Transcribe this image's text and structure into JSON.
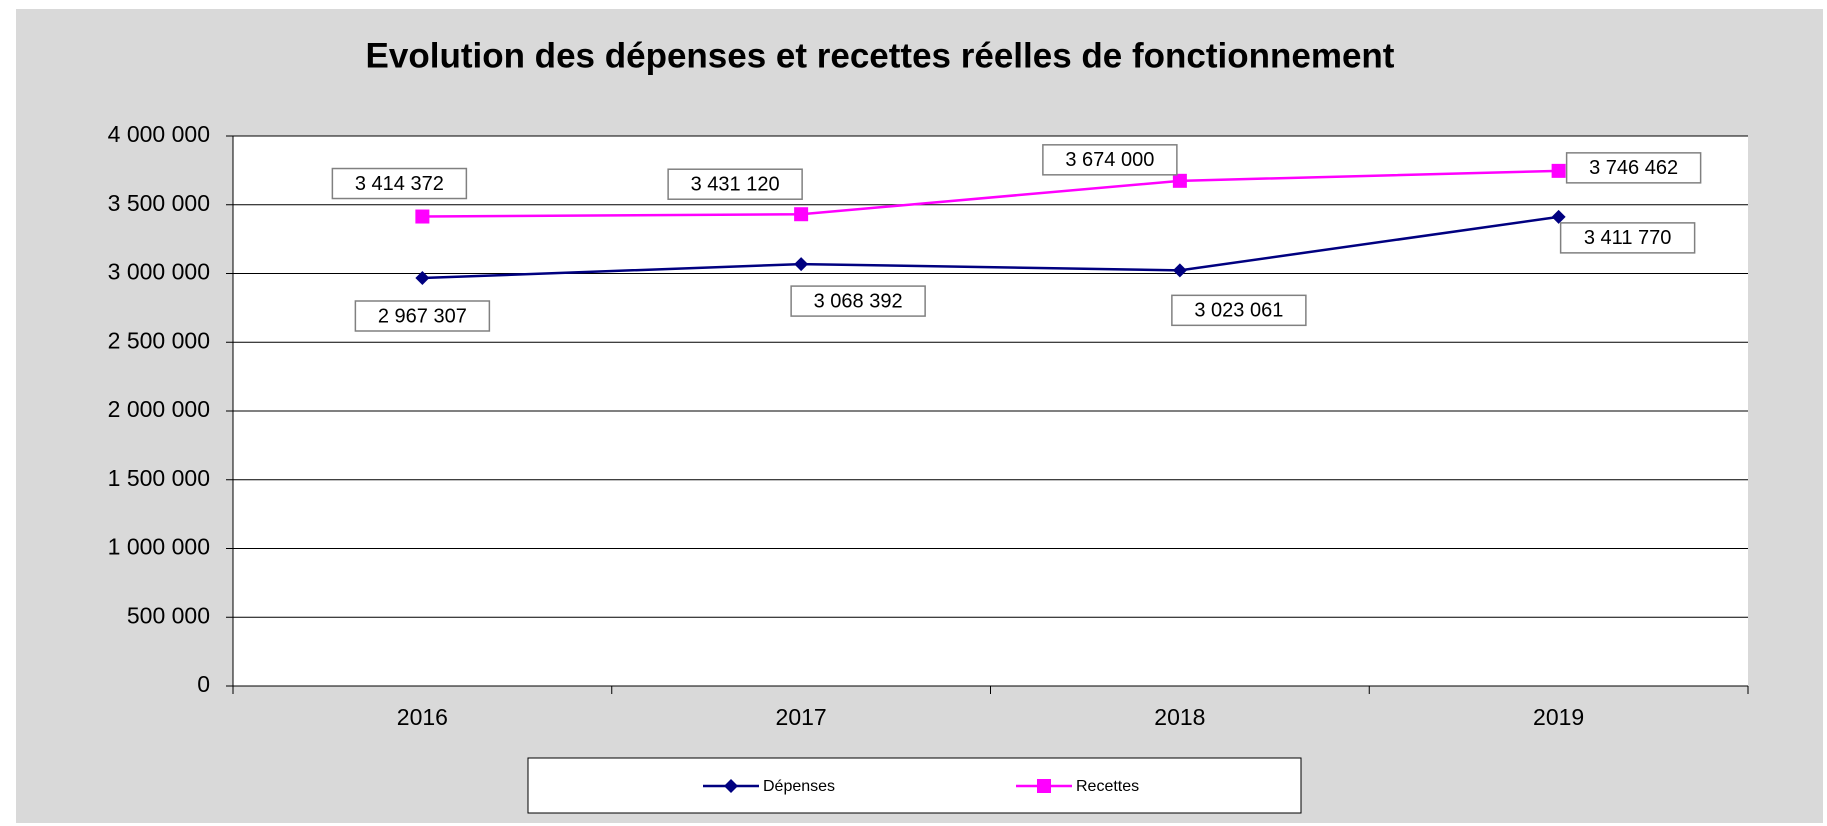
{
  "chart_data": {
    "type": "line",
    "title": "Evolution des dépenses et recettes réelles de fonctionnement",
    "categories": [
      "2016",
      "2017",
      "2018",
      "2019"
    ],
    "series": [
      {
        "name": "Dépenses",
        "color": "#000080",
        "marker": "diamond",
        "values": [
          2967307,
          3068392,
          3023061,
          3411770
        ],
        "value_labels": [
          "2 967 307",
          "3 068 392",
          "3 023 061",
          "3 411 770"
        ]
      },
      {
        "name": "Recettes",
        "color": "#ff00ff",
        "marker": "square",
        "values": [
          3414372,
          3431120,
          3674000,
          3746462
        ],
        "value_labels": [
          "3 414 372",
          "3 431 120",
          "3 674 000",
          "3 746 462"
        ]
      }
    ],
    "ylim": [
      0,
      4000000
    ],
    "yticks": [
      0,
      {
        "value": 500000,
        "label": "500 000"
      },
      {
        "value": 1000000,
        "label": "1 000 000"
      },
      {
        "value": 1500000,
        "label": "1 500 000"
      },
      {
        "value": 2000000,
        "label": "2 000 000"
      },
      {
        "value": 2500000,
        "label": "2 500 000"
      },
      {
        "value": 3000000,
        "label": "3 000 000"
      },
      {
        "value": 3500000,
        "label": "3 500 000"
      },
      {
        "value": 4000000,
        "label": "4 000 000"
      }
    ],
    "grid": true,
    "legend": "bottom"
  }
}
